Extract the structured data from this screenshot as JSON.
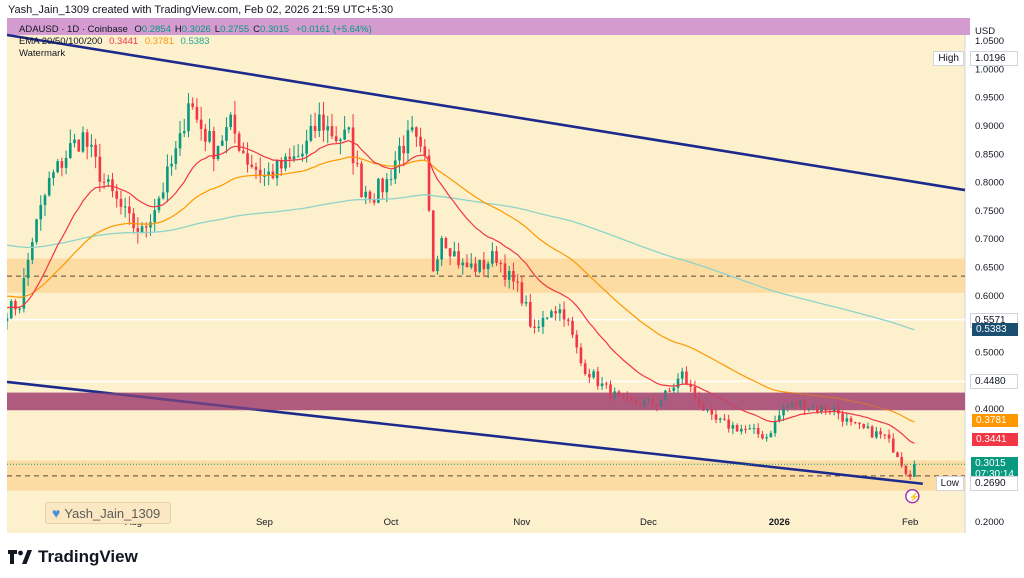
{
  "header": {
    "created_by": "Yash_Jain_1309 created with TradingView.com, Feb 02, 2026 21:59 UTC+5:30"
  },
  "legend": {
    "symbol": "ADAUSD · 1D · Coinbase",
    "ohlc": [
      {
        "label": "O",
        "value": "0.2854"
      },
      {
        "label": "H",
        "value": "0.3026"
      },
      {
        "label": "L",
        "value": "0.2755"
      },
      {
        "label": "C",
        "value": "0.3015"
      }
    ],
    "change": "+0.0161 (+5.64%)",
    "ema_label": "EMA 20/50/100/200",
    "ema_values": [
      "0.3441",
      "0.3781",
      "0.5383"
    ],
    "watermark_label": "Watermark"
  },
  "watermark_name": "Yash_Jain_1309",
  "branding": "TradingView",
  "colors": {
    "background": "#fdf0cc",
    "up": "#089981",
    "down": "#f23645",
    "ema20": "#f23645",
    "ema50": "#ff9800",
    "ema200": "#8fd3c9",
    "trendline": "#1b2a8c",
    "zone": "#fbd89a",
    "resistance_band": "#a9517a",
    "header_band": "#d39bd0"
  },
  "chart_data": {
    "type": "candlestick",
    "currency": "USD",
    "y_ticks": [
      1.05,
      1.0,
      0.95,
      0.9,
      0.85,
      0.8,
      0.75,
      0.7,
      0.65,
      0.6,
      0.55,
      0.5,
      0.45,
      0.4,
      0.35,
      0.3,
      0.25,
      0.2
    ],
    "y_tick_labels": [
      "1.0500",
      "1.0000",
      "0.9500",
      "0.9000",
      "0.8500",
      "0.8000",
      "0.7500",
      "0.7000",
      "0.6500",
      "0.6000",
      "0.5500",
      "0.5000",
      "",
      "0.4000",
      "",
      "",
      "",
      "0.2000"
    ],
    "ylim": [
      0.18,
      1.09
    ],
    "x_labels": [
      {
        "label": "Aug",
        "date": "2025-08-01"
      },
      {
        "label": "Sep",
        "date": "2025-09-01"
      },
      {
        "label": "Oct",
        "date": "2025-10-01"
      },
      {
        "label": "Nov",
        "date": "2025-11-01"
      },
      {
        "label": "Dec",
        "date": "2025-12-01"
      },
      {
        "label": "2026",
        "date": "2026-01-01"
      },
      {
        "label": "Feb",
        "date": "2026-02-01"
      }
    ],
    "xlim": [
      "2025-07-02",
      "2026-02-14"
    ],
    "price_labels": [
      {
        "text": "High",
        "value": "1.0196",
        "price": 1.0196,
        "style": "plain"
      },
      {
        "text": "",
        "value": "0.5571",
        "price": 0.5571,
        "style": "plain"
      },
      {
        "text": "",
        "value": "0.5383",
        "price": 0.5383,
        "style": "ema200"
      },
      {
        "text": "",
        "value": "0.4480",
        "price": 0.448,
        "style": "plain"
      },
      {
        "text": "",
        "value": "0.3781",
        "price": 0.3781,
        "style": "ema50"
      },
      {
        "text": "",
        "value": "0.3441",
        "price": 0.3441,
        "style": "ema20"
      },
      {
        "text": "",
        "value": "0.3015",
        "price": 0.3015,
        "style": "last",
        "sub": "07:30:14"
      },
      {
        "text": "Low",
        "value": "0.2690",
        "price": 0.269,
        "style": "plain"
      }
    ],
    "zones": [
      {
        "from": 0.6045,
        "to": 0.665,
        "color": "#fbd89a",
        "dashed": 0.634
      },
      {
        "from": 0.397,
        "to": 0.428,
        "color": "#a9517a"
      },
      {
        "from": 0.255,
        "to": 0.308,
        "color": "#fbd89a",
        "dashed": 0.281
      }
    ],
    "h_lines": [
      0.5571,
      0.448
    ],
    "trendlines": [
      {
        "x1": "2025-07-02",
        "y1": 1.06,
        "x2": "2026-02-14",
        "y2": 0.786
      },
      {
        "x1": "2025-07-02",
        "y1": 0.447,
        "x2": "2026-02-04",
        "y2": 0.267
      }
    ],
    "ema_series": {
      "ema20": "0.3441",
      "ema50": "0.3781",
      "ema200": "0.5383"
    },
    "keyframes": [
      [
        "2025-07-02",
        0.574
      ],
      [
        "2025-07-05",
        0.585
      ],
      [
        "2025-07-08",
        0.7
      ],
      [
        "2025-07-12",
        0.8
      ],
      [
        "2025-07-17",
        0.86
      ],
      [
        "2025-07-20",
        0.88
      ],
      [
        "2025-07-25",
        0.8
      ],
      [
        "2025-07-31",
        0.73
      ],
      [
        "2025-08-03",
        0.71
      ],
      [
        "2025-08-08",
        0.79
      ],
      [
        "2025-08-12",
        0.87
      ],
      [
        "2025-08-14",
        0.95
      ],
      [
        "2025-08-16",
        0.91
      ],
      [
        "2025-08-20",
        0.86
      ],
      [
        "2025-08-24",
        0.9
      ],
      [
        "2025-08-28",
        0.84
      ],
      [
        "2025-09-01",
        0.81
      ],
      [
        "2025-09-06",
        0.83
      ],
      [
        "2025-09-10",
        0.85
      ],
      [
        "2025-09-14",
        0.91
      ],
      [
        "2025-09-18",
        0.88
      ],
      [
        "2025-09-21",
        0.88
      ],
      [
        "2025-09-24",
        0.79
      ],
      [
        "2025-09-27",
        0.78
      ],
      [
        "2025-09-30",
        0.8
      ],
      [
        "2025-10-03",
        0.86
      ],
      [
        "2025-10-06",
        0.88
      ],
      [
        "2025-10-09",
        0.83
      ],
      [
        "2025-10-11",
        0.65
      ],
      [
        "2025-10-13",
        0.71
      ],
      [
        "2025-10-18",
        0.65
      ],
      [
        "2025-10-22",
        0.65
      ],
      [
        "2025-10-26",
        0.67
      ],
      [
        "2025-10-29",
        0.63
      ],
      [
        "2025-11-01",
        0.6
      ],
      [
        "2025-11-04",
        0.53
      ],
      [
        "2025-11-08",
        0.58
      ],
      [
        "2025-11-11",
        0.57
      ],
      [
        "2025-11-15",
        0.48
      ],
      [
        "2025-11-20",
        0.44
      ],
      [
        "2025-11-25",
        0.41
      ],
      [
        "2025-11-30",
        0.41
      ],
      [
        "2025-12-03",
        0.41
      ],
      [
        "2025-12-06",
        0.43
      ],
      [
        "2025-12-09",
        0.46
      ],
      [
        "2025-12-12",
        0.42
      ],
      [
        "2025-12-16",
        0.38
      ],
      [
        "2025-12-20",
        0.37
      ],
      [
        "2025-12-25",
        0.36
      ],
      [
        "2025-12-29",
        0.35
      ],
      [
        "2026-01-02",
        0.4
      ],
      [
        "2026-01-06",
        0.41
      ],
      [
        "2026-01-10",
        0.4
      ],
      [
        "2026-01-14",
        0.4
      ],
      [
        "2026-01-18",
        0.37
      ],
      [
        "2026-01-22",
        0.36
      ],
      [
        "2026-01-26",
        0.35
      ],
      [
        "2026-01-29",
        0.32
      ],
      [
        "2026-01-31",
        0.29
      ],
      [
        "2026-02-01",
        0.285
      ],
      [
        "2026-02-02",
        0.3015
      ]
    ]
  }
}
